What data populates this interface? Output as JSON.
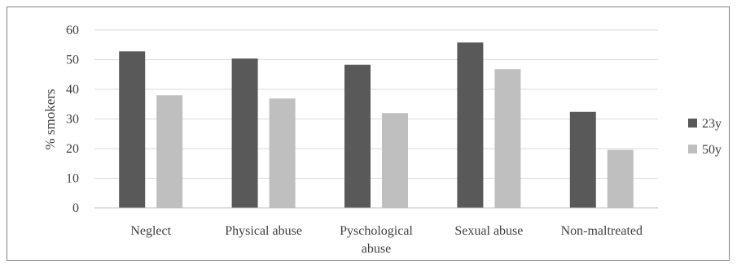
{
  "chart_data": {
    "type": "bar",
    "title": "",
    "xlabel": "",
    "ylabel": "% smokers",
    "ylim": [
      0,
      60
    ],
    "yticks": [
      0,
      10,
      20,
      30,
      40,
      50,
      60
    ],
    "grid": true,
    "legend_position": "right",
    "categories": [
      [
        "Neglect"
      ],
      [
        "Physical abuse"
      ],
      [
        "Pyschological",
        "abuse"
      ],
      [
        "Sexual abuse"
      ],
      [
        "Non-maltreated"
      ]
    ],
    "series": [
      {
        "name": "23y",
        "color": "#595959",
        "values": [
          52.8,
          50.4,
          48.3,
          55.8,
          32.4
        ]
      },
      {
        "name": "50y",
        "color": "#bfbfbf",
        "values": [
          38.0,
          36.9,
          32.0,
          46.8,
          19.6
        ]
      }
    ]
  }
}
